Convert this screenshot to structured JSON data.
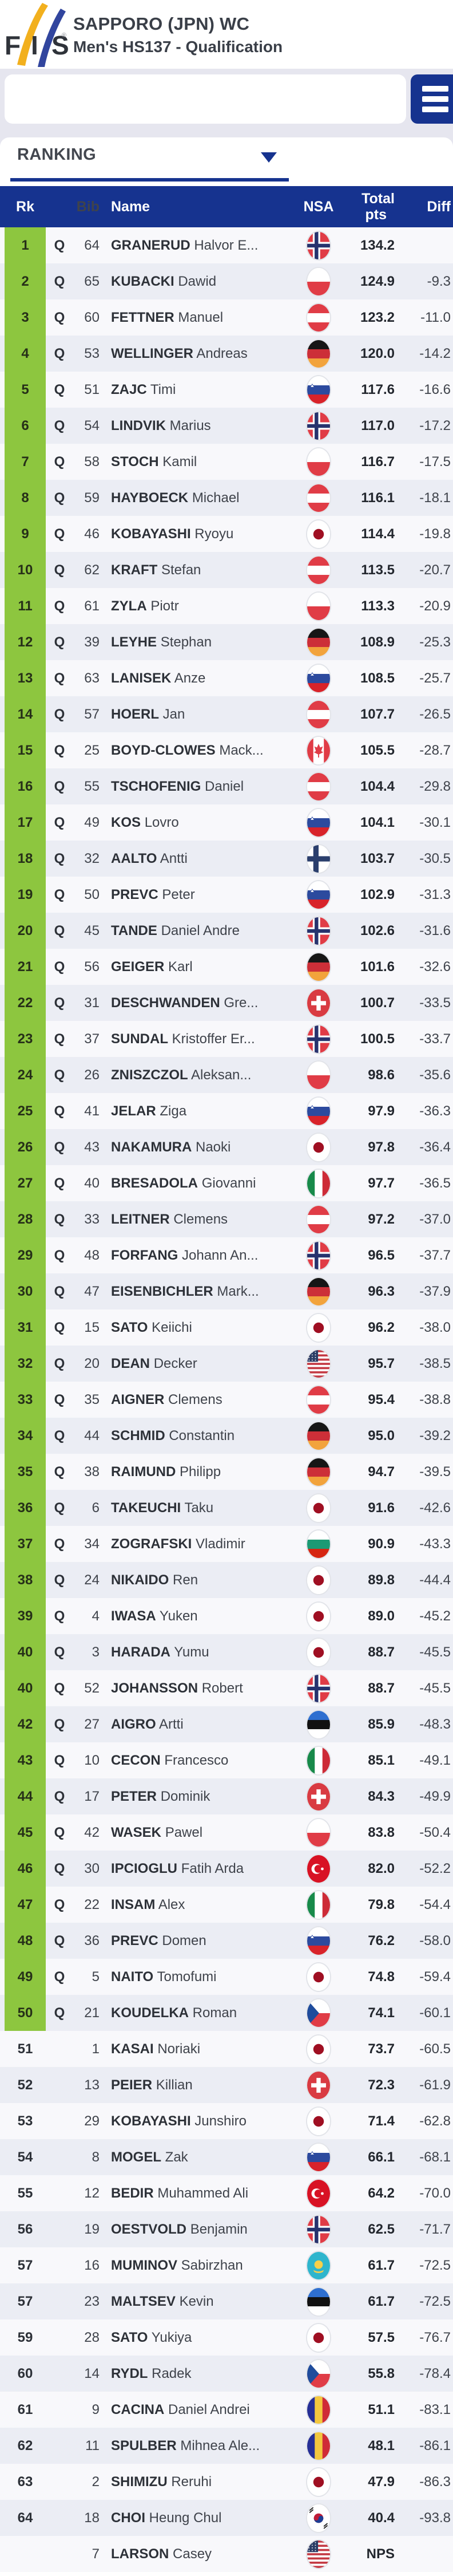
{
  "colors": {
    "navy": "#16338f",
    "green": "#8dc63f",
    "page_bg": "#e6e6ef",
    "row": "#f8f8fb",
    "row_alt": "#ebedf4",
    "logo_yellow": "#f2b01e",
    "logo_blue": "#31459e"
  },
  "header": {
    "title": "SAPPORO (JPN) WC",
    "subtitle": "Men's HS137 - Qualification",
    "logo_text": "FIS"
  },
  "search": {
    "value": ""
  },
  "tabs": {
    "ranking_label": "RANKING"
  },
  "table": {
    "columns": {
      "rk": "Rk",
      "bib": "Bib",
      "name": "Name",
      "nsa": "NSA",
      "total_line1": "Total",
      "total_line2": "pts",
      "diff": "Diff"
    },
    "rows": [
      {
        "rk": "1",
        "q": "Q",
        "bib": "64",
        "family": "GRANERUD",
        "given": "Halvor E...",
        "nsa": "NOR",
        "total": "134.2",
        "diff": "",
        "qualified": true
      },
      {
        "rk": "2",
        "q": "Q",
        "bib": "65",
        "family": "KUBACKI",
        "given": "Dawid",
        "nsa": "POL",
        "total": "124.9",
        "diff": "-9.3",
        "qualified": true
      },
      {
        "rk": "3",
        "q": "Q",
        "bib": "60",
        "family": "FETTNER",
        "given": "Manuel",
        "nsa": "AUT",
        "total": "123.2",
        "diff": "-11.0",
        "qualified": true
      },
      {
        "rk": "4",
        "q": "Q",
        "bib": "53",
        "family": "WELLINGER",
        "given": "Andreas",
        "nsa": "GER",
        "total": "120.0",
        "diff": "-14.2",
        "qualified": true
      },
      {
        "rk": "5",
        "q": "Q",
        "bib": "51",
        "family": "ZAJC",
        "given": "Timi",
        "nsa": "SLO",
        "total": "117.6",
        "diff": "-16.6",
        "qualified": true
      },
      {
        "rk": "6",
        "q": "Q",
        "bib": "54",
        "family": "LINDVIK",
        "given": "Marius",
        "nsa": "NOR",
        "total": "117.0",
        "diff": "-17.2",
        "qualified": true
      },
      {
        "rk": "7",
        "q": "Q",
        "bib": "58",
        "family": "STOCH",
        "given": "Kamil",
        "nsa": "POL",
        "total": "116.7",
        "diff": "-17.5",
        "qualified": true
      },
      {
        "rk": "8",
        "q": "Q",
        "bib": "59",
        "family": "HAYBOECK",
        "given": "Michael",
        "nsa": "AUT",
        "total": "116.1",
        "diff": "-18.1",
        "qualified": true
      },
      {
        "rk": "9",
        "q": "Q",
        "bib": "46",
        "family": "KOBAYASHI",
        "given": "Ryoyu",
        "nsa": "JPN",
        "total": "114.4",
        "diff": "-19.8",
        "qualified": true
      },
      {
        "rk": "10",
        "q": "Q",
        "bib": "62",
        "family": "KRAFT",
        "given": "Stefan",
        "nsa": "AUT",
        "total": "113.5",
        "diff": "-20.7",
        "qualified": true
      },
      {
        "rk": "11",
        "q": "Q",
        "bib": "61",
        "family": "ZYLA",
        "given": "Piotr",
        "nsa": "POL",
        "total": "113.3",
        "diff": "-20.9",
        "qualified": true
      },
      {
        "rk": "12",
        "q": "Q",
        "bib": "39",
        "family": "LEYHE",
        "given": "Stephan",
        "nsa": "GER",
        "total": "108.9",
        "diff": "-25.3",
        "qualified": true
      },
      {
        "rk": "13",
        "q": "Q",
        "bib": "63",
        "family": "LANISEK",
        "given": "Anze",
        "nsa": "SLO",
        "total": "108.5",
        "diff": "-25.7",
        "qualified": true
      },
      {
        "rk": "14",
        "q": "Q",
        "bib": "57",
        "family": "HOERL",
        "given": "Jan",
        "nsa": "AUT",
        "total": "107.7",
        "diff": "-26.5",
        "qualified": true
      },
      {
        "rk": "15",
        "q": "Q",
        "bib": "25",
        "family": "BOYD-CLOWES",
        "given": "Mack...",
        "nsa": "CAN",
        "total": "105.5",
        "diff": "-28.7",
        "qualified": true
      },
      {
        "rk": "16",
        "q": "Q",
        "bib": "55",
        "family": "TSCHOFENIG",
        "given": "Daniel",
        "nsa": "AUT",
        "total": "104.4",
        "diff": "-29.8",
        "qualified": true
      },
      {
        "rk": "17",
        "q": "Q",
        "bib": "49",
        "family": "KOS",
        "given": "Lovro",
        "nsa": "SLO",
        "total": "104.1",
        "diff": "-30.1",
        "qualified": true
      },
      {
        "rk": "18",
        "q": "Q",
        "bib": "32",
        "family": "AALTO",
        "given": "Antti",
        "nsa": "FIN",
        "total": "103.7",
        "diff": "-30.5",
        "qualified": true
      },
      {
        "rk": "19",
        "q": "Q",
        "bib": "50",
        "family": "PREVC",
        "given": "Peter",
        "nsa": "SLO",
        "total": "102.9",
        "diff": "-31.3",
        "qualified": true
      },
      {
        "rk": "20",
        "q": "Q",
        "bib": "45",
        "family": "TANDE",
        "given": "Daniel Andre",
        "nsa": "NOR",
        "total": "102.6",
        "diff": "-31.6",
        "qualified": true
      },
      {
        "rk": "21",
        "q": "Q",
        "bib": "56",
        "family": "GEIGER",
        "given": "Karl",
        "nsa": "GER",
        "total": "101.6",
        "diff": "-32.6",
        "qualified": true
      },
      {
        "rk": "22",
        "q": "Q",
        "bib": "31",
        "family": "DESCHWANDEN",
        "given": "Gre...",
        "nsa": "SUI",
        "total": "100.7",
        "diff": "-33.5",
        "qualified": true
      },
      {
        "rk": "23",
        "q": "Q",
        "bib": "37",
        "family": "SUNDAL",
        "given": "Kristoffer Er...",
        "nsa": "NOR",
        "total": "100.5",
        "diff": "-33.7",
        "qualified": true
      },
      {
        "rk": "24",
        "q": "Q",
        "bib": "26",
        "family": "ZNISZCZOL",
        "given": "Aleksan...",
        "nsa": "POL",
        "total": "98.6",
        "diff": "-35.6",
        "qualified": true
      },
      {
        "rk": "25",
        "q": "Q",
        "bib": "41",
        "family": "JELAR",
        "given": "Ziga",
        "nsa": "SLO",
        "total": "97.9",
        "diff": "-36.3",
        "qualified": true
      },
      {
        "rk": "26",
        "q": "Q",
        "bib": "43",
        "family": "NAKAMURA",
        "given": "Naoki",
        "nsa": "JPN",
        "total": "97.8",
        "diff": "-36.4",
        "qualified": true
      },
      {
        "rk": "27",
        "q": "Q",
        "bib": "40",
        "family": "BRESADOLA",
        "given": "Giovanni",
        "nsa": "ITA",
        "total": "97.7",
        "diff": "-36.5",
        "qualified": true
      },
      {
        "rk": "28",
        "q": "Q",
        "bib": "33",
        "family": "LEITNER",
        "given": "Clemens",
        "nsa": "AUT",
        "total": "97.2",
        "diff": "-37.0",
        "qualified": true
      },
      {
        "rk": "29",
        "q": "Q",
        "bib": "48",
        "family": "FORFANG",
        "given": "Johann An...",
        "nsa": "NOR",
        "total": "96.5",
        "diff": "-37.7",
        "qualified": true
      },
      {
        "rk": "30",
        "q": "Q",
        "bib": "47",
        "family": "EISENBICHLER",
        "given": "Mark...",
        "nsa": "GER",
        "total": "96.3",
        "diff": "-37.9",
        "qualified": true
      },
      {
        "rk": "31",
        "q": "Q",
        "bib": "15",
        "family": "SATO",
        "given": "Keiichi",
        "nsa": "JPN",
        "total": "96.2",
        "diff": "-38.0",
        "qualified": true
      },
      {
        "rk": "32",
        "q": "Q",
        "bib": "20",
        "family": "DEAN",
        "given": "Decker",
        "nsa": "USA",
        "total": "95.7",
        "diff": "-38.5",
        "qualified": true
      },
      {
        "rk": "33",
        "q": "Q",
        "bib": "35",
        "family": "AIGNER",
        "given": "Clemens",
        "nsa": "AUT",
        "total": "95.4",
        "diff": "-38.8",
        "qualified": true
      },
      {
        "rk": "34",
        "q": "Q",
        "bib": "44",
        "family": "SCHMID",
        "given": "Constantin",
        "nsa": "GER",
        "total": "95.0",
        "diff": "-39.2",
        "qualified": true
      },
      {
        "rk": "35",
        "q": "Q",
        "bib": "38",
        "family": "RAIMUND",
        "given": "Philipp",
        "nsa": "GER",
        "total": "94.7",
        "diff": "-39.5",
        "qualified": true
      },
      {
        "rk": "36",
        "q": "Q",
        "bib": "6",
        "family": "TAKEUCHI",
        "given": "Taku",
        "nsa": "JPN",
        "total": "91.6",
        "diff": "-42.6",
        "qualified": true
      },
      {
        "rk": "37",
        "q": "Q",
        "bib": "34",
        "family": "ZOGRAFSKI",
        "given": "Vladimir",
        "nsa": "BUL",
        "total": "90.9",
        "diff": "-43.3",
        "qualified": true
      },
      {
        "rk": "38",
        "q": "Q",
        "bib": "24",
        "family": "NIKAIDO",
        "given": "Ren",
        "nsa": "JPN",
        "total": "89.8",
        "diff": "-44.4",
        "qualified": true
      },
      {
        "rk": "39",
        "q": "Q",
        "bib": "4",
        "family": "IWASA",
        "given": "Yuken",
        "nsa": "JPN",
        "total": "89.0",
        "diff": "-45.2",
        "qualified": true
      },
      {
        "rk": "40",
        "q": "Q",
        "bib": "3",
        "family": "HARADA",
        "given": "Yumu",
        "nsa": "JPN",
        "total": "88.7",
        "diff": "-45.5",
        "qualified": true
      },
      {
        "rk": "40",
        "q": "Q",
        "bib": "52",
        "family": "JOHANSSON",
        "given": "Robert",
        "nsa": "NOR",
        "total": "88.7",
        "diff": "-45.5",
        "qualified": true
      },
      {
        "rk": "42",
        "q": "Q",
        "bib": "27",
        "family": "AIGRO",
        "given": "Artti",
        "nsa": "EST",
        "total": "85.9",
        "diff": "-48.3",
        "qualified": true
      },
      {
        "rk": "43",
        "q": "Q",
        "bib": "10",
        "family": "CECON",
        "given": "Francesco",
        "nsa": "ITA",
        "total": "85.1",
        "diff": "-49.1",
        "qualified": true
      },
      {
        "rk": "44",
        "q": "Q",
        "bib": "17",
        "family": "PETER",
        "given": "Dominik",
        "nsa": "SUI",
        "total": "84.3",
        "diff": "-49.9",
        "qualified": true
      },
      {
        "rk": "45",
        "q": "Q",
        "bib": "42",
        "family": "WASEK",
        "given": "Pawel",
        "nsa": "POL",
        "total": "83.8",
        "diff": "-50.4",
        "qualified": true
      },
      {
        "rk": "46",
        "q": "Q",
        "bib": "30",
        "family": "IPCIOGLU",
        "given": "Fatih Arda",
        "nsa": "TUR",
        "total": "82.0",
        "diff": "-52.2",
        "qualified": true
      },
      {
        "rk": "47",
        "q": "Q",
        "bib": "22",
        "family": "INSAM",
        "given": "Alex",
        "nsa": "ITA",
        "total": "79.8",
        "diff": "-54.4",
        "qualified": true
      },
      {
        "rk": "48",
        "q": "Q",
        "bib": "36",
        "family": "PREVC",
        "given": "Domen",
        "nsa": "SLO",
        "total": "76.2",
        "diff": "-58.0",
        "qualified": true
      },
      {
        "rk": "49",
        "q": "Q",
        "bib": "5",
        "family": "NAITO",
        "given": "Tomofumi",
        "nsa": "JPN",
        "total": "74.8",
        "diff": "-59.4",
        "qualified": true
      },
      {
        "rk": "50",
        "q": "Q",
        "bib": "21",
        "family": "KOUDELKA",
        "given": "Roman",
        "nsa": "CZE",
        "total": "74.1",
        "diff": "-60.1",
        "qualified": true
      },
      {
        "rk": "51",
        "q": "",
        "bib": "1",
        "family": "KASAI",
        "given": "Noriaki",
        "nsa": "JPN",
        "total": "73.7",
        "diff": "-60.5",
        "qualified": false
      },
      {
        "rk": "52",
        "q": "",
        "bib": "13",
        "family": "PEIER",
        "given": "Killian",
        "nsa": "SUI",
        "total": "72.3",
        "diff": "-61.9",
        "qualified": false
      },
      {
        "rk": "53",
        "q": "",
        "bib": "29",
        "family": "KOBAYASHI",
        "given": "Junshiro",
        "nsa": "JPN",
        "total": "71.4",
        "diff": "-62.8",
        "qualified": false
      },
      {
        "rk": "54",
        "q": "",
        "bib": "8",
        "family": "MOGEL",
        "given": "Zak",
        "nsa": "SLO",
        "total": "66.1",
        "diff": "-68.1",
        "qualified": false
      },
      {
        "rk": "55",
        "q": "",
        "bib": "12",
        "family": "BEDIR",
        "given": "Muhammed Ali",
        "nsa": "TUR",
        "total": "64.2",
        "diff": "-70.0",
        "qualified": false
      },
      {
        "rk": "56",
        "q": "",
        "bib": "19",
        "family": "OESTVOLD",
        "given": "Benjamin",
        "nsa": "NOR",
        "total": "62.5",
        "diff": "-71.7",
        "qualified": false
      },
      {
        "rk": "57",
        "q": "",
        "bib": "16",
        "family": "MUMINOV",
        "given": "Sabirzhan",
        "nsa": "KAZ",
        "total": "61.7",
        "diff": "-72.5",
        "qualified": false
      },
      {
        "rk": "57",
        "q": "",
        "bib": "23",
        "family": "MALTSEV",
        "given": "Kevin",
        "nsa": "EST",
        "total": "61.7",
        "diff": "-72.5",
        "qualified": false
      },
      {
        "rk": "59",
        "q": "",
        "bib": "28",
        "family": "SATO",
        "given": "Yukiya",
        "nsa": "JPN",
        "total": "57.5",
        "diff": "-76.7",
        "qualified": false
      },
      {
        "rk": "60",
        "q": "",
        "bib": "14",
        "family": "RYDL",
        "given": "Radek",
        "nsa": "CZE",
        "total": "55.8",
        "diff": "-78.4",
        "qualified": false
      },
      {
        "rk": "61",
        "q": "",
        "bib": "9",
        "family": "CACINA",
        "given": "Daniel Andrei",
        "nsa": "ROU",
        "total": "51.1",
        "diff": "-83.1",
        "qualified": false
      },
      {
        "rk": "62",
        "q": "",
        "bib": "11",
        "family": "SPULBER",
        "given": "Mihnea Ale...",
        "nsa": "ROU",
        "total": "48.1",
        "diff": "-86.1",
        "qualified": false
      },
      {
        "rk": "63",
        "q": "",
        "bib": "2",
        "family": "SHIMIZU",
        "given": "Reruhi",
        "nsa": "JPN",
        "total": "47.9",
        "diff": "-86.3",
        "qualified": false
      },
      {
        "rk": "64",
        "q": "",
        "bib": "18",
        "family": "CHOI",
        "given": "Heung Chul",
        "nsa": "KOR",
        "total": "40.4",
        "diff": "-93.8",
        "qualified": false
      },
      {
        "rk": "",
        "q": "",
        "bib": "7",
        "family": "LARSON",
        "given": "Casey",
        "nsa": "USA",
        "total": "NPS",
        "diff": "",
        "qualified": false
      }
    ]
  }
}
